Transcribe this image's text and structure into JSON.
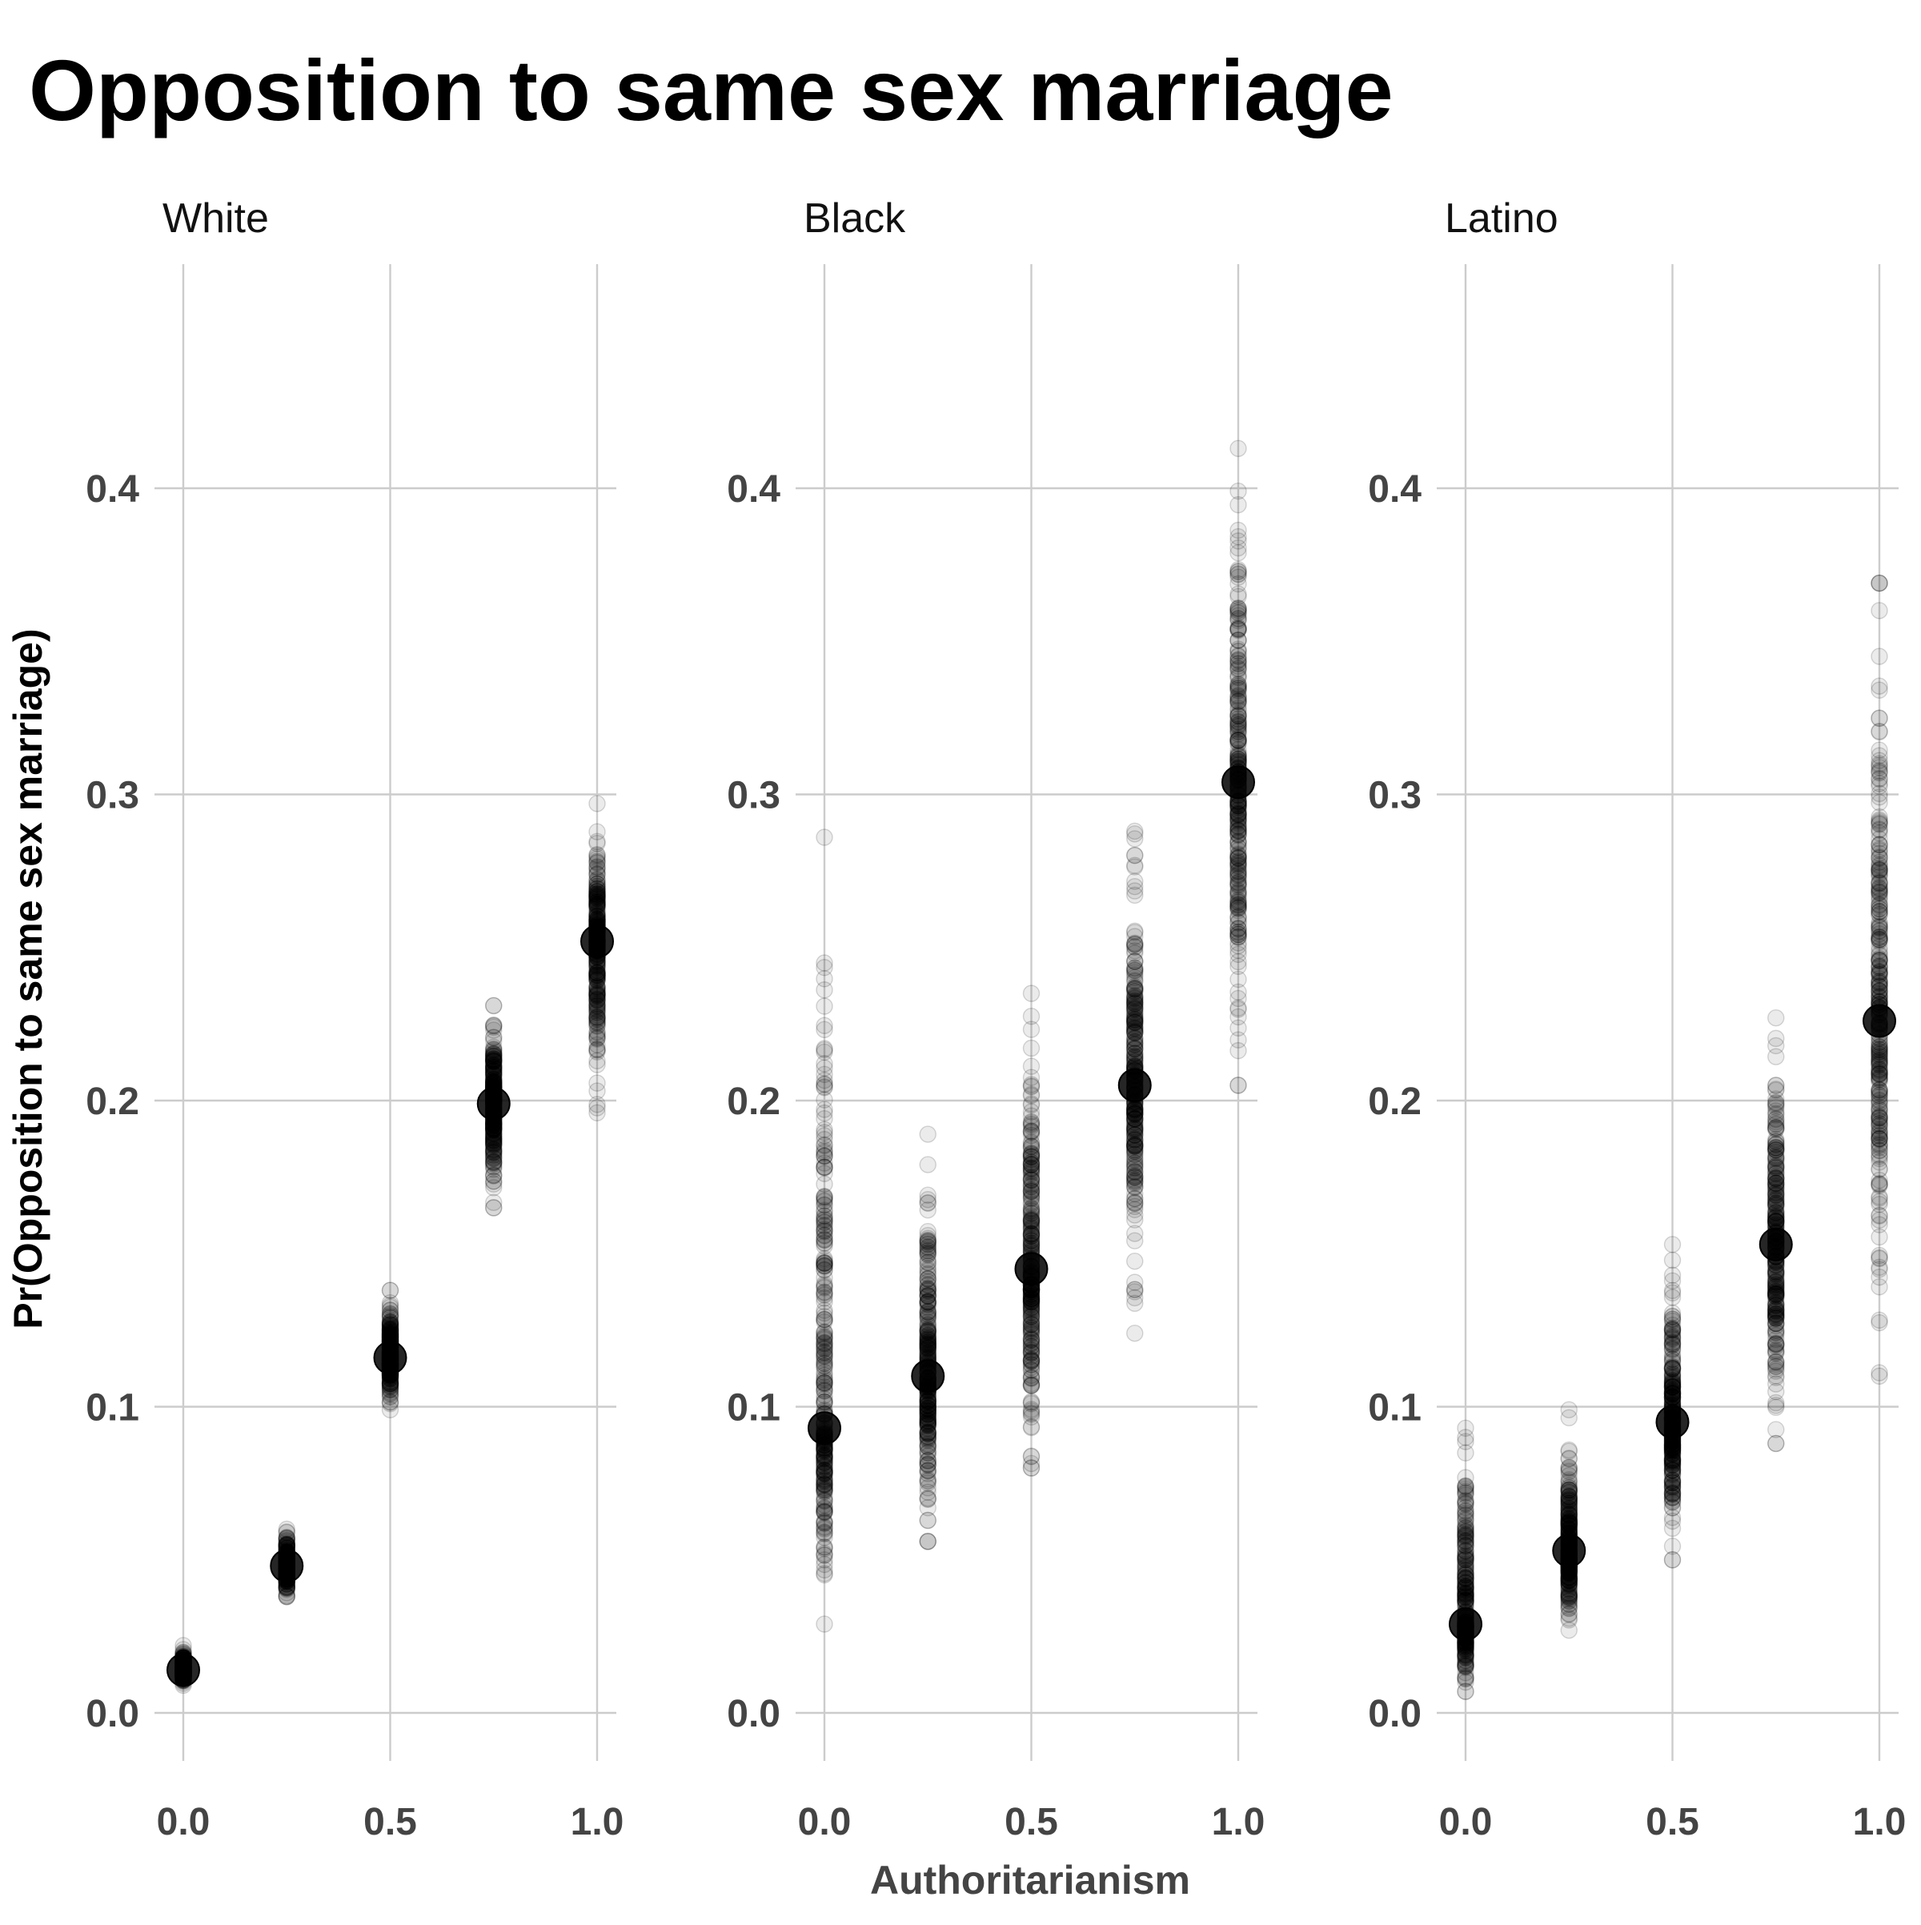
{
  "chart_data": {
    "type": "scatter",
    "title": "Opposition to same sex marriage",
    "xlabel": "Authoritarianism",
    "ylabel": "Pr(Opposition to same sex marriage)",
    "xlim": [
      0,
      1
    ],
    "ylim": [
      0,
      0.4
    ],
    "x_ticks": [
      "0.0",
      "0.5",
      "1.0"
    ],
    "y_ticks": [
      "0.0",
      "0.1",
      "0.2",
      "0.3",
      "0.4"
    ],
    "grid": true,
    "legend": "none",
    "point_color": "#000000",
    "gridline_color": "#cccccc",
    "panels": [
      {
        "label": "White",
        "x": [
          0,
          0.25,
          0.5,
          0.75,
          1.0
        ],
        "mean": [
          0.014,
          0.048,
          0.116,
          0.199,
          0.252
        ],
        "draw_min": [
          0.009,
          0.038,
          0.099,
          0.165,
          0.196
        ],
        "draw_max": [
          0.022,
          0.06,
          0.138,
          0.231,
          0.297
        ]
      },
      {
        "label": "Black",
        "x": [
          0,
          0.25,
          0.5,
          0.75,
          1.0
        ],
        "mean": [
          0.093,
          0.11,
          0.145,
          0.205,
          0.304
        ],
        "draw_min": [
          0.029,
          0.056,
          0.08,
          0.124,
          0.205
        ],
        "draw_max": [
          0.286,
          0.189,
          0.235,
          0.288,
          0.413
        ]
      },
      {
        "label": "Latino",
        "x": [
          0,
          0.25,
          0.5,
          0.75,
          1.0
        ],
        "mean": [
          0.029,
          0.053,
          0.095,
          0.153,
          0.226
        ],
        "draw_min": [
          0.007,
          0.027,
          0.05,
          0.088,
          0.11
        ],
        "draw_max": [
          0.093,
          0.099,
          0.153,
          0.227,
          0.369
        ]
      }
    ]
  }
}
